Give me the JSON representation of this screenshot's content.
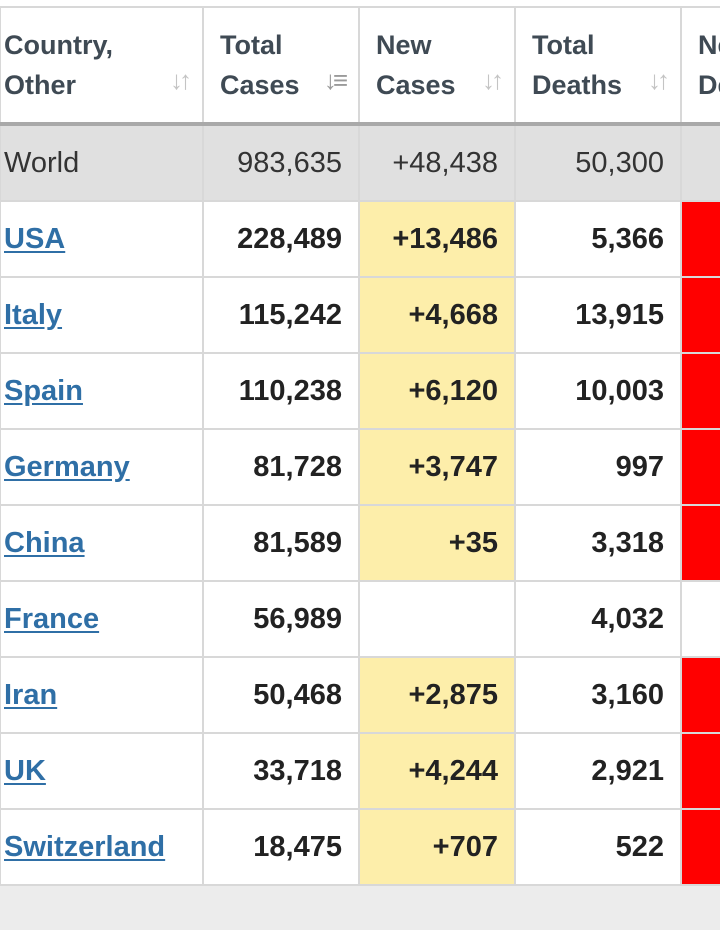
{
  "colors": {
    "new_cases_bg": "#fdeeaa",
    "new_deaths_bg": "#ff0000",
    "world_row_bg": "#e0e0e0",
    "link": "#2f6fa6"
  },
  "headers": [
    {
      "line1": "Country,",
      "line2": "Other",
      "icon": "sort-both-icon"
    },
    {
      "line1": "Total",
      "line2": "Cases",
      "icon": "sort-desc-icon"
    },
    {
      "line1": "New",
      "line2": "Cases",
      "icon": "sort-both-icon"
    },
    {
      "line1": "Total",
      "line2": "Deaths",
      "icon": "sort-both-icon"
    },
    {
      "line1": "Ne",
      "line2": "De"
    }
  ],
  "world": {
    "country": "World",
    "total_cases": "983,635",
    "new_cases": "+48,438",
    "total_deaths": "50,300"
  },
  "rows": [
    {
      "country": "USA",
      "total_cases": "228,489",
      "new_cases": "+13,486",
      "total_deaths": "5,366",
      "new_deaths_marked": true
    },
    {
      "country": "Italy",
      "total_cases": "115,242",
      "new_cases": "+4,668",
      "total_deaths": "13,915",
      "new_deaths_marked": true
    },
    {
      "country": "Spain",
      "total_cases": "110,238",
      "new_cases": "+6,120",
      "total_deaths": "10,003",
      "new_deaths_marked": true
    },
    {
      "country": "Germany",
      "total_cases": "81,728",
      "new_cases": "+3,747",
      "total_deaths": "997",
      "new_deaths_marked": true
    },
    {
      "country": "China",
      "total_cases": "81,589",
      "new_cases": "+35",
      "total_deaths": "3,318",
      "new_deaths_marked": true
    },
    {
      "country": "France",
      "total_cases": "56,989",
      "new_cases": "",
      "total_deaths": "4,032",
      "new_deaths_marked": false
    },
    {
      "country": "Iran",
      "total_cases": "50,468",
      "new_cases": "+2,875",
      "total_deaths": "3,160",
      "new_deaths_marked": true
    },
    {
      "country": "UK",
      "total_cases": "33,718",
      "new_cases": "+4,244",
      "total_deaths": "2,921",
      "new_deaths_marked": true
    },
    {
      "country": "Switzerland",
      "total_cases": "18,475",
      "new_cases": "+707",
      "total_deaths": "522",
      "new_deaths_marked": true
    }
  ]
}
